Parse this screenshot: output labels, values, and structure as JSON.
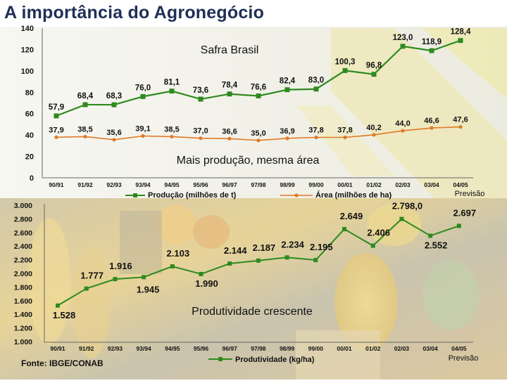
{
  "slide": {
    "title": "A importância do Agronegócio",
    "source": "Fonte: IBGE/CONAB"
  },
  "colors": {
    "production": "#2e8a1f",
    "area": "#e07a26",
    "productivity": "#2e8a1f",
    "title": "#1f2f56",
    "top_background": "#f2f2ea",
    "bottom_background": "#c9b27a"
  },
  "chart_data": [
    {
      "type": "line",
      "title": "Safra Brasil",
      "annotation": "Mais produção, mesma área",
      "forecast_note": "Previsão",
      "categories": [
        "90/91",
        "91/92",
        "92/93",
        "93/94",
        "94/95",
        "95/96",
        "96/97",
        "97/98",
        "98/99",
        "99/00",
        "00/01",
        "01/02",
        "02/03",
        "03/04",
        "04/05"
      ],
      "series": [
        {
          "name": "Produção (milhões de t)",
          "values": [
            57.9,
            68.4,
            68.3,
            76.0,
            81.1,
            73.6,
            78.4,
            76.6,
            82.4,
            83.0,
            100.3,
            96.8,
            123.0,
            118.9,
            128.4
          ],
          "labels": [
            "57,9",
            "68,4",
            "68,3",
            "76,0",
            "81,1",
            "73,6",
            "78,4",
            "76,6",
            "82,4",
            "83,0",
            "100,3",
            "96,8",
            "123,0",
            "118,9",
            "128,4"
          ]
        },
        {
          "name": "Área (milhões de ha)",
          "values": [
            37.9,
            38.5,
            35.6,
            39.1,
            38.5,
            37.0,
            36.6,
            35.0,
            36.9,
            37.8,
            37.8,
            40.2,
            44.0,
            46.6,
            47.6
          ],
          "labels": [
            "37,9",
            "38,5",
            "35,6",
            "39,1",
            "38,5",
            "37,0",
            "36,6",
            "35,0",
            "36,9",
            "37,8",
            "37,8",
            "40,2",
            "44,0",
            "46,6",
            "47,6"
          ]
        }
      ],
      "y_ticks": [
        "0",
        "20",
        "40",
        "60",
        "80",
        "100",
        "120",
        "140"
      ],
      "ylim": [
        0,
        140
      ],
      "grid": false,
      "legend_position": "bottom"
    },
    {
      "type": "line",
      "annotation": "Produtividade crescente",
      "forecast_note": "Previsão",
      "categories": [
        "90/91",
        "91/92",
        "92/93",
        "93/94",
        "94/95",
        "95/96",
        "96/97",
        "97/98",
        "98/99",
        "99/00",
        "00/01",
        "01/02",
        "02/03",
        "03/04",
        "04/05"
      ],
      "series": [
        {
          "name": "Produtividade (kg/ha)",
          "values": [
            1528,
            1777,
            1916,
            1945,
            2103,
            1990,
            2144,
            2187,
            2234,
            2195,
            2649,
            2406,
            2798,
            2552,
            2697
          ],
          "labels": [
            "1.528",
            "1.777",
            "1.916",
            "1.945",
            "2.103",
            "1.990",
            "2.144",
            "2.187",
            "2.234",
            "2.195",
            "2.649",
            "2.406",
            "2.798,0",
            "2.552",
            "2.697"
          ]
        }
      ],
      "y_ticks": [
        "1.000",
        "1.200",
        "1.400",
        "1.600",
        "1.800",
        "2.000",
        "2.200",
        "2.400",
        "2.600",
        "2.800",
        "3.000"
      ],
      "ylim": [
        1000,
        3000
      ],
      "grid": false,
      "legend_position": "bottom"
    }
  ]
}
